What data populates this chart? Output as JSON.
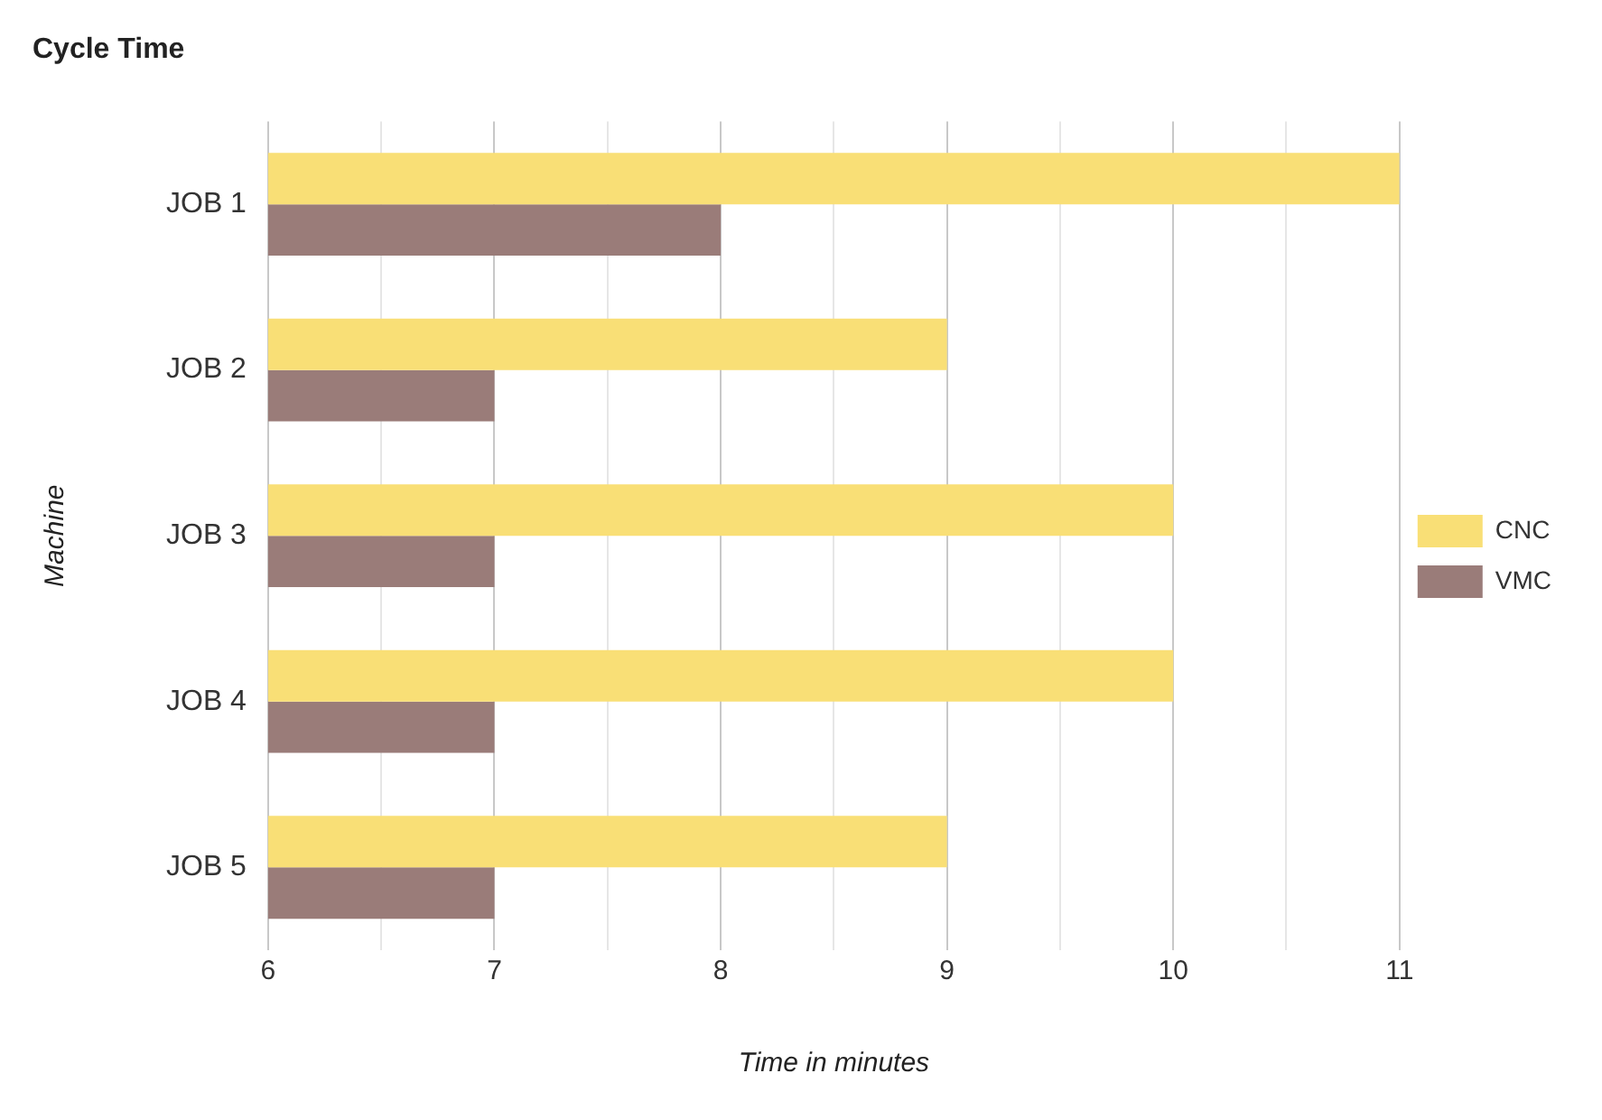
{
  "chart_data": {
    "type": "bar",
    "orientation": "horizontal",
    "title": "Cycle Time",
    "xlabel": "Time in minutes",
    "ylabel": "Machine",
    "categories": [
      "JOB 1",
      "JOB 2",
      "JOB 3",
      "JOB 4",
      "JOB 5"
    ],
    "series": [
      {
        "name": "CNC",
        "color": "#f9df76",
        "values": [
          11,
          9,
          10,
          10,
          9
        ]
      },
      {
        "name": "VMC",
        "color": "#9a7c79",
        "values": [
          8,
          7,
          7,
          7,
          7
        ]
      }
    ],
    "xlim": [
      6,
      11
    ],
    "xticks": [
      6,
      {
        "value": 6.5,
        "label": null
      },
      7,
      {
        "value": 7.5,
        "label": null
      },
      8,
      {
        "value": 8.5,
        "label": null
      },
      9,
      {
        "value": 9.5,
        "label": null
      },
      10,
      {
        "value": 10.5,
        "label": null
      },
      11
    ],
    "grid": "x",
    "legend": "right"
  }
}
